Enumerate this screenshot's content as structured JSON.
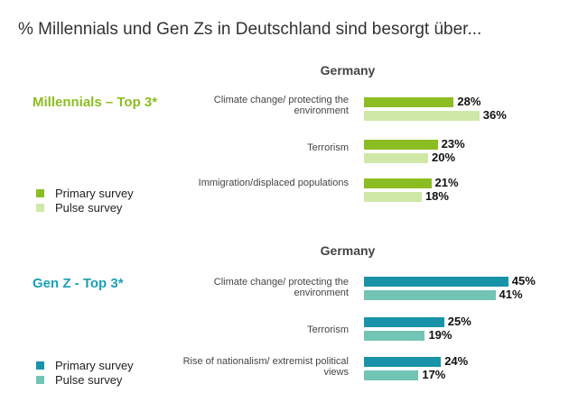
{
  "title": "% Millennials und Gen Zs in Deutschland sind besorgt über...",
  "legend": {
    "primary": "Primary survey",
    "pulse": "Pulse survey"
  },
  "chart_data": [
    {
      "type": "bar",
      "orientation": "horizontal",
      "title": "Germany",
      "group_label": "Millennials  – Top 3*",
      "label_color": "#8cbd23",
      "colors": {
        "primary": "#8cbd23",
        "pulse": "#cfe8a7"
      },
      "categories": [
        "Climate change/ protecting the environment",
        "Terrorism",
        "Immigration/displaced populations"
      ],
      "series": [
        {
          "name": "Primary survey",
          "values": [
            28,
            23,
            21
          ]
        },
        {
          "name": "Pulse survey",
          "values": [
            36,
            20,
            18
          ]
        }
      ],
      "value_labels": [
        [
          "28%",
          "23%",
          "21%"
        ],
        [
          "36%",
          "20%",
          "18%"
        ]
      ]
    },
    {
      "type": "bar",
      "orientation": "horizontal",
      "title": "Germany",
      "group_label": "Gen Z - Top 3*",
      "label_color": "#1aa0b4",
      "colors": {
        "primary": "#1893a8",
        "pulse": "#72c4b4"
      },
      "categories": [
        "Climate change/ protecting the environment",
        "Terrorism",
        "Rise of nationalism/ extremist political views"
      ],
      "series": [
        {
          "name": "Primary survey",
          "values": [
            45,
            25,
            24
          ]
        },
        {
          "name": "Pulse survey",
          "values": [
            41,
            19,
            17
          ]
        }
      ],
      "value_labels": [
        [
          "45%",
          "25%",
          "24%"
        ],
        [
          "41%",
          "19%",
          "17%"
        ]
      ]
    }
  ]
}
